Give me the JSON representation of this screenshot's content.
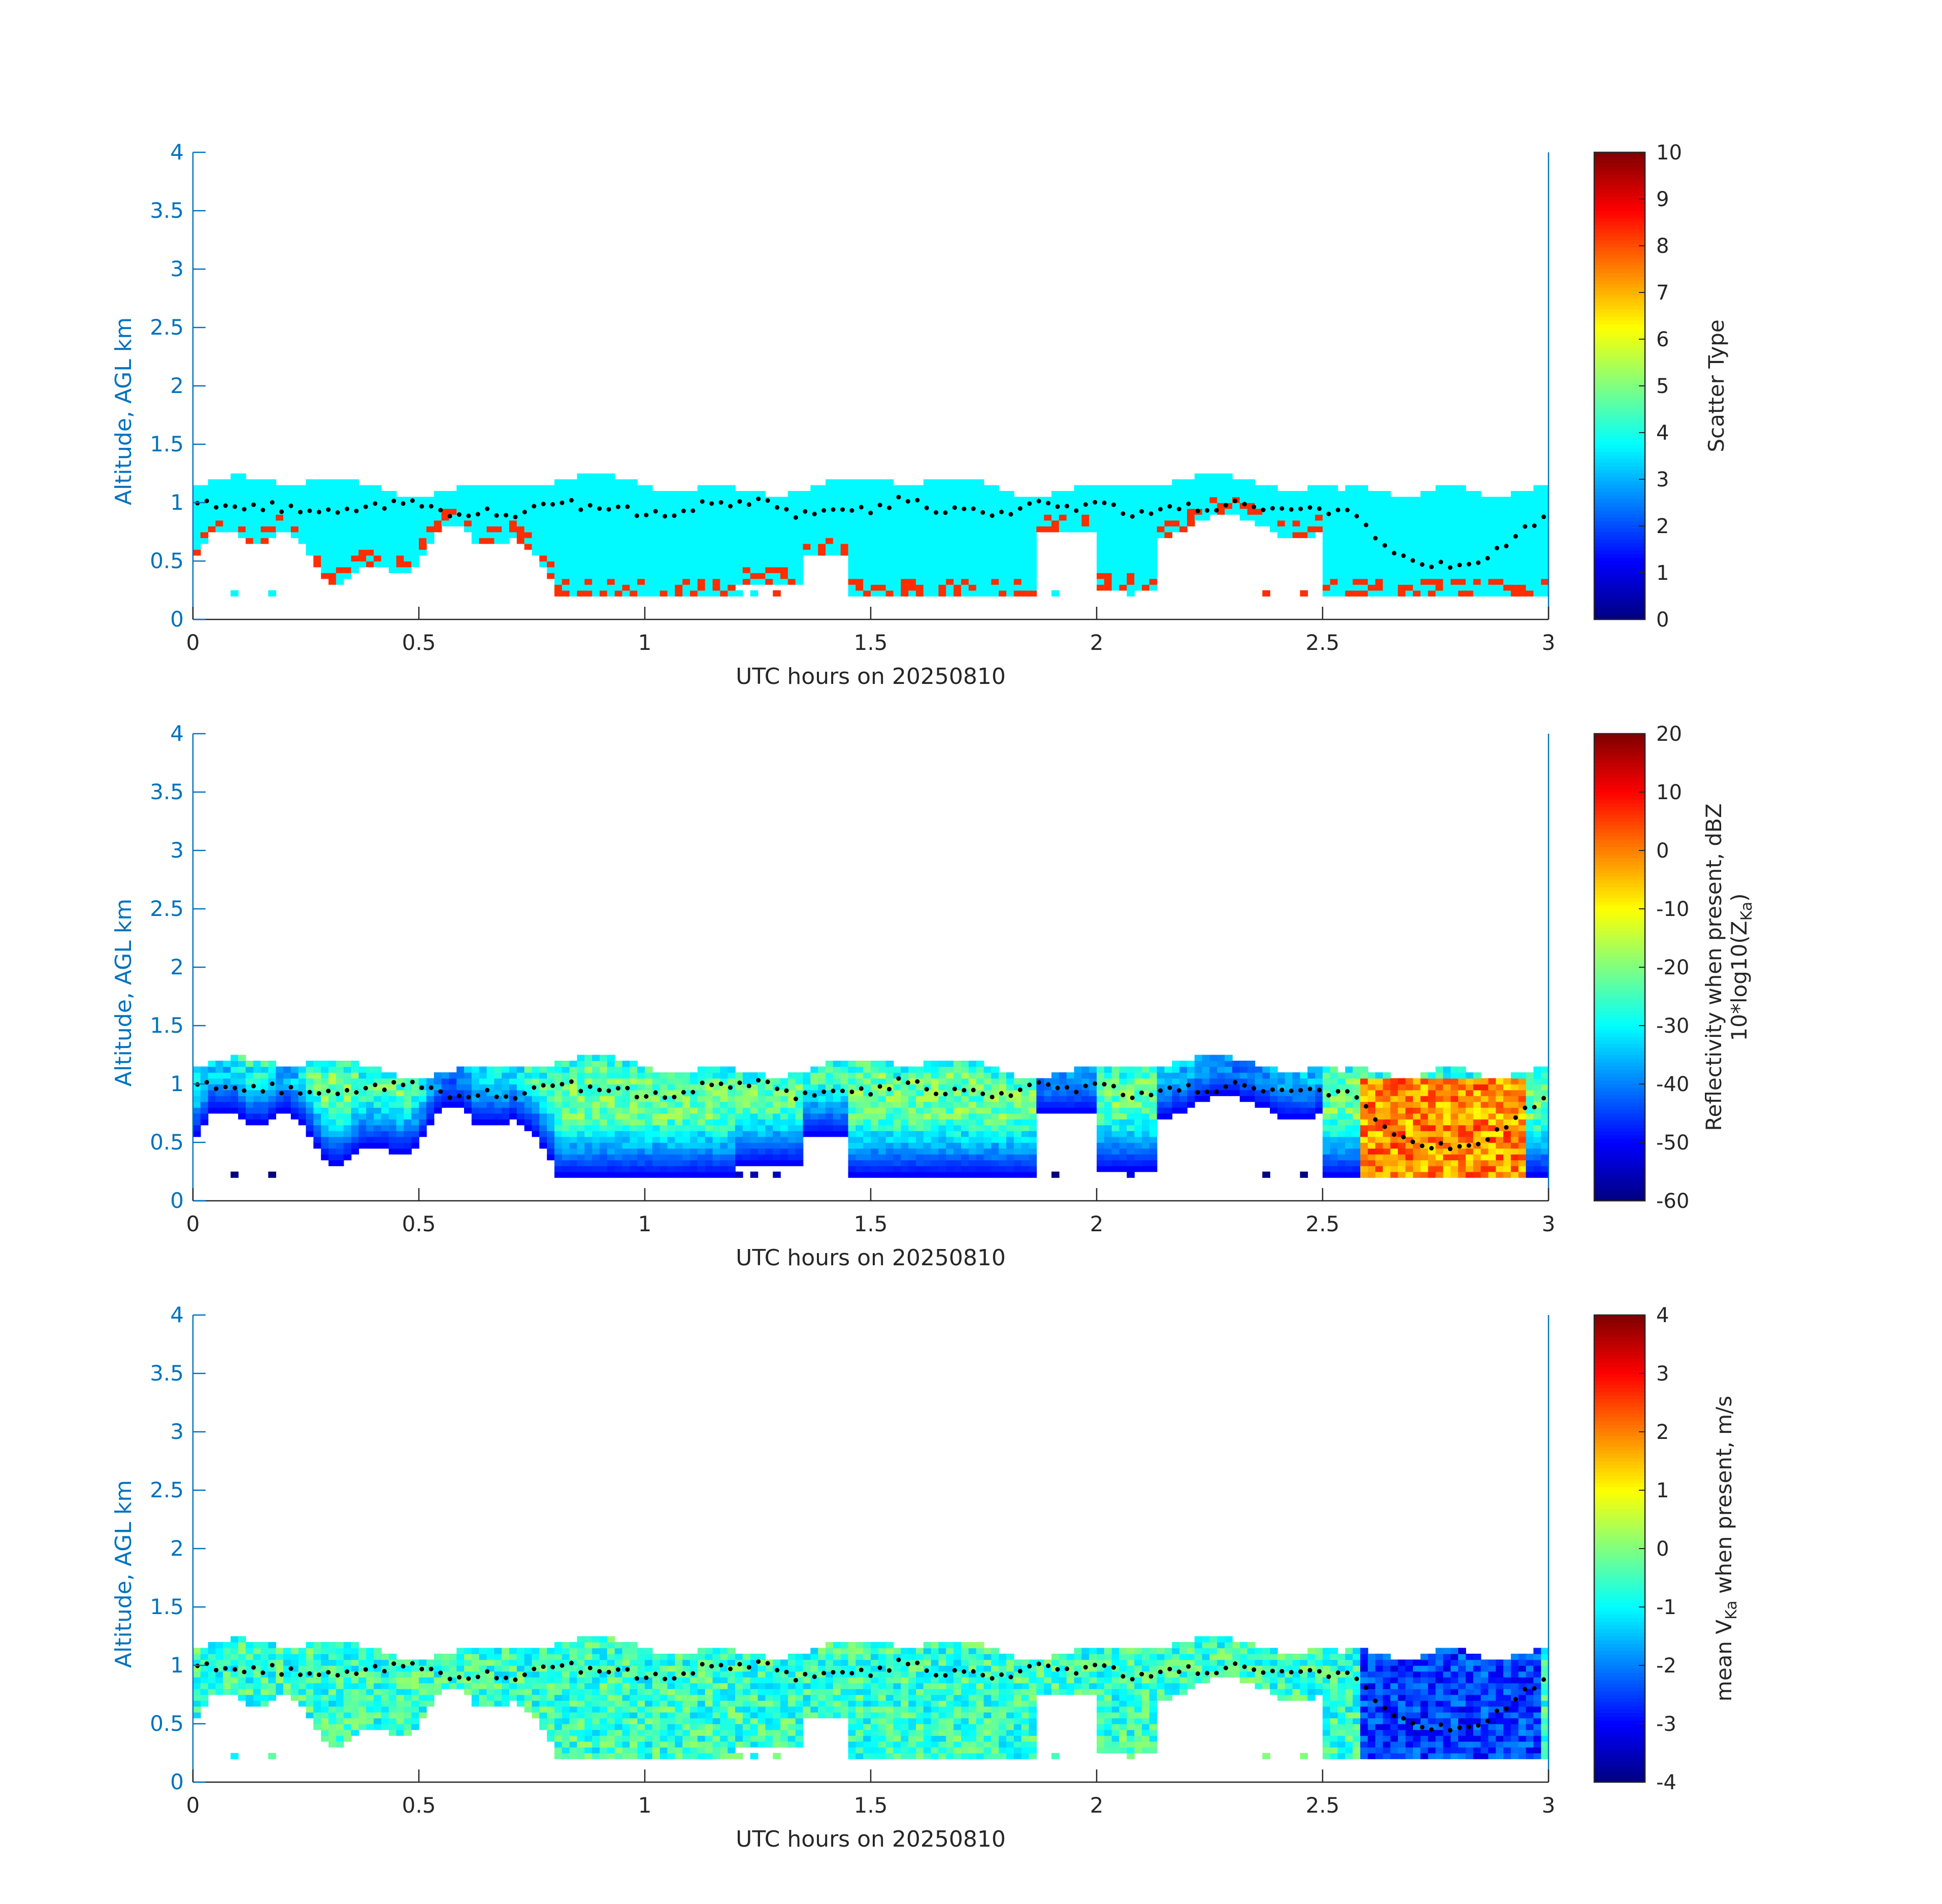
{
  "colors": {
    "axis_left": "#0072BD",
    "axis_text": "#262626",
    "frame": "#262626",
    "dots": "#000000"
  },
  "chart_data": [
    {
      "type": "heatmap",
      "title": "",
      "xlabel": "UTC hours on 20250810",
      "ylabel": "Altitude, AGL km",
      "xlim": [
        0,
        3
      ],
      "ylim": [
        0,
        4
      ],
      "xticks": [
        "0",
        "0.5",
        "1",
        "1.5",
        "2",
        "2.5",
        "3"
      ],
      "yticks": [
        "0",
        "0.5",
        "1",
        "1.5",
        "2",
        "2.5",
        "3",
        "3.5",
        "4"
      ],
      "colorbar": {
        "label": "Scatter Type",
        "clim": [
          0,
          10
        ],
        "ticks": [
          "0",
          "1",
          "2",
          "3",
          "4",
          "5",
          "6",
          "7",
          "8",
          "9",
          "10"
        ],
        "colormap": "jet"
      },
      "field": "scatter_type",
      "echo": {
        "base_km": 0.18,
        "top_km_range": [
          1.1,
          1.25
        ],
        "dominant_value": 3.7,
        "secondary_value": 8.3
      },
      "markers": "black dots near cloud base, ~0.9–1.0 km from 0–2.5 h, descending to ~0.45 km near 2.85 h"
    },
    {
      "type": "heatmap",
      "title": "",
      "xlabel": "UTC hours on 20250810",
      "ylabel": "Altitude, AGL km",
      "xlim": [
        0,
        3
      ],
      "ylim": [
        0,
        4
      ],
      "xticks": [
        "0",
        "0.5",
        "1",
        "1.5",
        "2",
        "2.5",
        "3"
      ],
      "yticks": [
        "0",
        "0.5",
        "1",
        "1.5",
        "2",
        "2.5",
        "3",
        "3.5",
        "4"
      ],
      "colorbar": {
        "label_lines": [
          "Reflectivity when present, dBZ",
          "10*log10(Z"
        ],
        "label_sub": "Ka",
        "label_close": ")",
        "clim": [
          -60,
          20
        ],
        "ticks": [
          "-60",
          "-50",
          "-40",
          "-30",
          "-20",
          "-10",
          "0",
          "10",
          "20"
        ],
        "colormap": "jet"
      },
      "field": "reflectivity_dbz",
      "echo": {
        "typical_range_dbz": [
          -55,
          -15
        ],
        "strong_core_hours": [
          2.58,
          2.95
        ],
        "strong_core_dbz": [
          -5,
          10
        ]
      }
    },
    {
      "type": "heatmap",
      "title": "",
      "xlabel": "UTC hours on 20250810",
      "ylabel": "Altitude, AGL km",
      "xlim": [
        0,
        3
      ],
      "ylim": [
        0,
        4
      ],
      "xticks": [
        "0",
        "0.5",
        "1",
        "1.5",
        "2",
        "2.5",
        "3"
      ],
      "yticks": [
        "0",
        "0.5",
        "1",
        "1.5",
        "2",
        "2.5",
        "3",
        "3.5",
        "4"
      ],
      "colorbar": {
        "label_pre": "mean V",
        "label_sub": "Ka",
        "label_post": " when present, m/s",
        "clim": [
          -4,
          4
        ],
        "ticks": [
          "-4",
          "-3",
          "-2",
          "-1",
          "0",
          "1",
          "2",
          "3",
          "4"
        ],
        "colormap": "jet"
      },
      "field": "mean_velocity_ms",
      "echo": {
        "typical_range_ms": [
          -1.5,
          0.5
        ],
        "downdraft_hours": [
          2.58,
          2.95
        ],
        "downdraft_ms": [
          -3.5,
          -2
        ]
      }
    }
  ]
}
